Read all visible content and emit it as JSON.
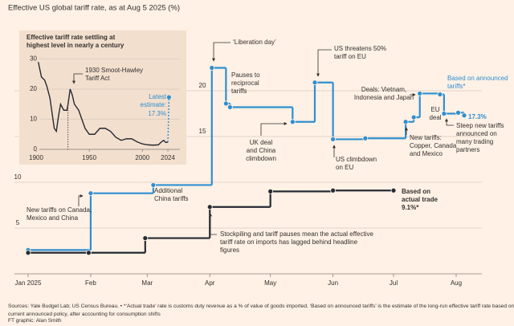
{
  "chart_data": [
    {
      "type": "line",
      "step": true,
      "title": "Effective US global tariff rate, as at Aug 5 2025 (%)",
      "xlim": [
        0,
        222
      ],
      "xticks": [
        {
          "value": 0,
          "label": "Jan 2025"
        },
        {
          "value": 31,
          "label": "Feb"
        },
        {
          "value": 59,
          "label": "Mar"
        },
        {
          "value": 90,
          "label": "Apr"
        },
        {
          "value": 120,
          "label": "May"
        },
        {
          "value": 151,
          "label": "Jun"
        },
        {
          "value": 181,
          "label": "Jul"
        },
        {
          "value": 212,
          "label": "Aug"
        }
      ],
      "ylim": [
        0,
        25
      ],
      "yticks": [
        5,
        10,
        15,
        20
      ],
      "grid": true,
      "series": [
        {
          "name": "Based on announced tariffs*",
          "color": "#2e8fd0",
          "x": [
            0,
            31,
            62,
            91,
            98,
            100,
            131,
            142,
            151,
            167,
            187,
            191,
            194,
            204,
            206,
            213,
            216
          ],
          "values": [
            2.6,
            8.8,
            9.7,
            22.5,
            18.6,
            18.2,
            16.6,
            20.9,
            14.7,
            14.8,
            16.6,
            17.1,
            19.7,
            19.6,
            17.5,
            17.6,
            17.3
          ],
          "value_labels": [
            null,
            null,
            null,
            null,
            null,
            null,
            null,
            null,
            null,
            null,
            null,
            null,
            null,
            null,
            null,
            null,
            "17.3%"
          ]
        },
        {
          "name": "Based on actual trade",
          "color": "#262a33",
          "x": [
            0,
            30,
            58,
            90,
            120,
            151,
            181
          ],
          "values": [
            2.3,
            2.3,
            3.9,
            7.3,
            9.0,
            9.1,
            9.1
          ],
          "value_labels": [
            null,
            null,
            null,
            null,
            null,
            null,
            "9.1%*"
          ]
        }
      ],
      "annotations": [
        [
          "‘Liberation day’"
        ],
        [
          "Pauses to",
          "reciprocal",
          "tariffs"
        ],
        [
          "UK deal",
          "and China",
          "climbdown"
        ],
        [
          "US threatens 50%",
          "tariff on EU"
        ],
        [
          "Deals: Vietnam,",
          "Indonesia and Japan"
        ],
        [
          "EU",
          "deal"
        ],
        [
          "Steep new tariffs",
          "announced on",
          "many trading",
          "partners"
        ],
        [
          "New tariffs:",
          "Copper, Canada",
          "and Mexico"
        ],
        [
          "US climbdown",
          "on EU"
        ],
        [
          "Additional",
          "China tariffs"
        ],
        [
          "New tariffs on Canada,",
          "Mexico and China"
        ],
        [
          "Stockpiling and tariff pauses mean the actual effective",
          "tariff rate on imports has lagged behind headline",
          "figures"
        ]
      ],
      "source": [
        "Sources: Yale Budget Lab; US Census Bureau. • *‘Actual trade’ rate is customs duty revenue as a % of value of goods imported. ‘Based on announced tariffs’ is the estimate of the long-run effective tariff rate based on",
        "current announced policy, after accounting for consumption shifts"
      ],
      "credit": "FT graphic: Alan Smith"
    },
    {
      "type": "line",
      "title": "Effective tariff rate settling at highest level in nearly a century",
      "xlim": [
        1890,
        2030
      ],
      "xticks": [
        1900,
        1950,
        2000,
        2024
      ],
      "ylim": [
        0,
        35
      ],
      "yticks": [
        0,
        10,
        20,
        30
      ],
      "grid": true,
      "series": [
        {
          "color": "#262a33",
          "x": [
            1902,
            1905,
            1908,
            1910,
            1913,
            1915,
            1917,
            1919,
            1921,
            1923,
            1926,
            1929,
            1930,
            1932,
            1934,
            1936,
            1940,
            1944,
            1946,
            1950,
            1955,
            1960,
            1965,
            1970,
            1975,
            1980,
            1985,
            1990,
            1995,
            2000,
            2005,
            2010,
            2015,
            2018,
            2020,
            2022,
            2024
          ],
          "values": [
            29,
            24,
            23,
            21,
            17,
            12,
            7,
            6,
            11,
            15,
            13,
            13,
            15,
            20,
            18,
            15,
            13,
            9,
            7,
            5,
            5,
            7,
            7,
            6,
            4,
            3,
            3.5,
            3.5,
            2.5,
            1.8,
            1.5,
            1.4,
            1.5,
            2.5,
            3,
            2.3,
            2.4
          ]
        },
        {
          "color": "#2e8fd0",
          "dashed": true,
          "x": [
            2024,
            2025
          ],
          "values": [
            2.4,
            17.3
          ],
          "value_labels": [
            null,
            "17.3%"
          ]
        }
      ],
      "annotations": [
        [
          "1930 Smoot-Hawley",
          "Tariff Act"
        ],
        [
          "Latest",
          "estimate:"
        ]
      ]
    }
  ]
}
